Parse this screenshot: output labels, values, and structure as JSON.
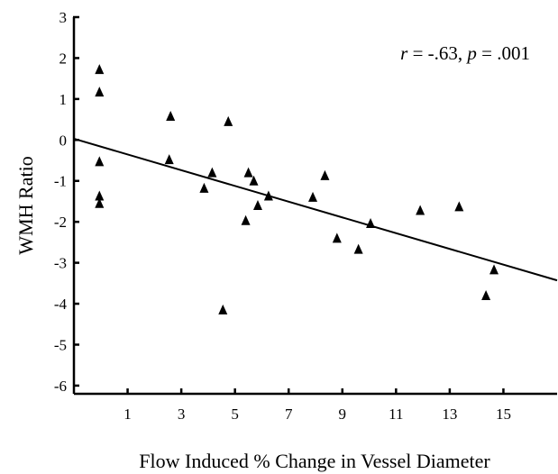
{
  "chart_data": {
    "type": "scatter",
    "title": "",
    "xlabel": "Flow Induced % Change in Vessel Diameter",
    "ylabel": "WMH Ratio",
    "xlim": [
      -1,
      17
    ],
    "ylim": [
      -6.2,
      3
    ],
    "xticks": [
      1,
      3,
      5,
      7,
      9,
      11,
      13,
      15
    ],
    "yticks": [
      3,
      2,
      1,
      0,
      -1,
      -2,
      -3,
      -4,
      -5,
      -6
    ],
    "xtick_labels": [
      "1",
      "3",
      "5",
      "7",
      "9",
      "11",
      "13",
      "15"
    ],
    "ytick_labels": [
      "3",
      "2",
      "1",
      "0",
      "-1",
      "-2",
      "-3",
      "-4",
      "-5",
      "-6"
    ],
    "grid": false,
    "marker": "triangle",
    "marker_color": "#000000",
    "points": [
      {
        "x": -0.05,
        "y": 1.72
      },
      {
        "x": -0.05,
        "y": 1.17
      },
      {
        "x": -0.05,
        "y": -0.53
      },
      {
        "x": -0.05,
        "y": -1.37
      },
      {
        "x": -0.05,
        "y": -1.55
      },
      {
        "x": 2.6,
        "y": 0.58
      },
      {
        "x": 2.55,
        "y": -0.48
      },
      {
        "x": 3.85,
        "y": -1.18
      },
      {
        "x": 4.15,
        "y": -0.8
      },
      {
        "x": 4.75,
        "y": 0.45
      },
      {
        "x": 4.55,
        "y": -4.15
      },
      {
        "x": 5.4,
        "y": -1.97
      },
      {
        "x": 5.5,
        "y": -0.8
      },
      {
        "x": 5.7,
        "y": -1.0
      },
      {
        "x": 5.85,
        "y": -1.6
      },
      {
        "x": 6.25,
        "y": -1.37
      },
      {
        "x": 7.9,
        "y": -1.4
      },
      {
        "x": 8.35,
        "y": -0.87
      },
      {
        "x": 8.8,
        "y": -2.4
      },
      {
        "x": 9.6,
        "y": -2.67
      },
      {
        "x": 10.05,
        "y": -2.04
      },
      {
        "x": 11.9,
        "y": -1.72
      },
      {
        "x": 13.35,
        "y": -1.63
      },
      {
        "x": 14.35,
        "y": -3.8
      },
      {
        "x": 14.65,
        "y": -3.17
      }
    ],
    "fit_line": {
      "x": [
        -1,
        17
      ],
      "y": [
        0.03,
        -3.43
      ]
    },
    "annotation": {
      "r_symbol": "r",
      "r_value": " = -.63, ",
      "p_symbol": "p",
      "p_value": " = .001"
    }
  }
}
